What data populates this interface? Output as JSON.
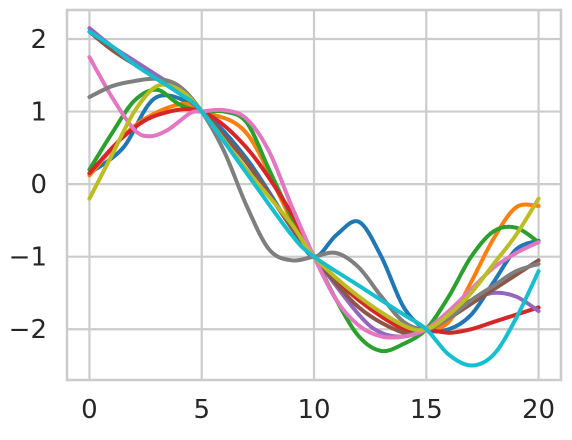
{
  "chart_data": {
    "type": "line",
    "title": "",
    "xlabel": "",
    "ylabel": "",
    "xlim": [
      -1,
      21
    ],
    "ylim": [
      -2.7,
      2.4
    ],
    "xticks": [
      0,
      5,
      10,
      15,
      20
    ],
    "yticks": [
      2,
      1,
      0,
      -1,
      -2
    ],
    "xtick_labels": [
      "0",
      "5",
      "10",
      "15",
      "20"
    ],
    "ytick_labels": [
      "2",
      "1",
      "0",
      "−1",
      "−2"
    ],
    "grid": true,
    "series": [
      {
        "color": "#1f77b4",
        "points": [
          [
            0,
            0.15
          ],
          [
            1.5,
            0.5
          ],
          [
            3,
            1.2
          ],
          [
            5,
            1.0
          ],
          [
            7,
            0.35
          ],
          [
            9,
            -0.6
          ],
          [
            10,
            -1.0
          ],
          [
            11,
            -0.7
          ],
          [
            12,
            -0.52
          ],
          [
            13,
            -1.0
          ],
          [
            14,
            -1.7
          ],
          [
            15,
            -2.0
          ],
          [
            16,
            -2.0
          ],
          [
            17,
            -1.8
          ],
          [
            18,
            -1.35
          ],
          [
            19,
            -0.9
          ],
          [
            20,
            -0.78
          ]
        ]
      },
      {
        "color": "#ff7f0e",
        "points": [
          [
            0,
            0.12
          ],
          [
            2,
            0.8
          ],
          [
            4,
            1.1
          ],
          [
            5,
            1.0
          ],
          [
            7,
            0.7
          ],
          [
            9,
            -0.5
          ],
          [
            10,
            -1.0
          ],
          [
            12,
            -1.6
          ],
          [
            14,
            -2.0
          ],
          [
            15,
            -2.0
          ],
          [
            16,
            -1.9
          ],
          [
            17,
            -1.35
          ],
          [
            18,
            -0.75
          ],
          [
            19,
            -0.32
          ],
          [
            20,
            -0.3
          ]
        ]
      },
      {
        "color": "#2ca02c",
        "points": [
          [
            0,
            0.2
          ],
          [
            1,
            0.7
          ],
          [
            2,
            1.15
          ],
          [
            3,
            1.3
          ],
          [
            4,
            1.1
          ],
          [
            5,
            1.0
          ],
          [
            6,
            1.0
          ],
          [
            7,
            0.85
          ],
          [
            8,
            0.2
          ],
          [
            9,
            -0.45
          ],
          [
            10,
            -1.0
          ],
          [
            11,
            -1.6
          ],
          [
            12,
            -2.1
          ],
          [
            13,
            -2.3
          ],
          [
            14,
            -2.2
          ],
          [
            15,
            -2.0
          ],
          [
            16,
            -1.55
          ],
          [
            17,
            -1.0
          ],
          [
            18,
            -0.65
          ],
          [
            19,
            -0.6
          ],
          [
            20,
            -0.8
          ]
        ]
      },
      {
        "color": "#d62728",
        "points": [
          [
            0,
            0.15
          ],
          [
            1.5,
            0.65
          ],
          [
            3,
            0.95
          ],
          [
            5,
            1.0
          ],
          [
            7,
            0.5
          ],
          [
            9,
            -0.4
          ],
          [
            10,
            -1.0
          ],
          [
            12,
            -1.6
          ],
          [
            14,
            -2.0
          ],
          [
            15,
            -2.0
          ],
          [
            16,
            -2.05
          ],
          [
            17,
            -2.0
          ],
          [
            18,
            -1.9
          ],
          [
            19,
            -1.8
          ],
          [
            20,
            -1.7
          ]
        ]
      },
      {
        "color": "#9467bd",
        "points": [
          [
            0,
            2.15
          ],
          [
            1,
            1.9
          ],
          [
            2,
            1.7
          ],
          [
            3,
            1.5
          ],
          [
            4,
            1.3
          ],
          [
            5,
            1.0
          ],
          [
            7,
            0.3
          ],
          [
            9,
            -0.6
          ],
          [
            10,
            -1.0
          ],
          [
            12,
            -1.8
          ],
          [
            13,
            -2.05
          ],
          [
            14,
            -2.1
          ],
          [
            15,
            -2.0
          ],
          [
            16,
            -1.8
          ],
          [
            17,
            -1.6
          ],
          [
            18,
            -1.5
          ],
          [
            19,
            -1.55
          ],
          [
            20,
            -1.75
          ]
        ]
      },
      {
        "color": "#8c564b",
        "points": [
          [
            0,
            2.1
          ],
          [
            1,
            1.85
          ],
          [
            2,
            1.65
          ],
          [
            3,
            1.45
          ],
          [
            4,
            1.25
          ],
          [
            5,
            1.0
          ],
          [
            7,
            0.3
          ],
          [
            9,
            -0.6
          ],
          [
            10,
            -1.0
          ],
          [
            12,
            -1.7
          ],
          [
            14,
            -2.05
          ],
          [
            15,
            -2.0
          ],
          [
            16,
            -1.85
          ],
          [
            17,
            -1.65
          ],
          [
            18,
            -1.45
          ],
          [
            19,
            -1.25
          ],
          [
            20,
            -1.05
          ]
        ]
      },
      {
        "color": "#e377c2",
        "points": [
          [
            0,
            1.75
          ],
          [
            1,
            1.2
          ],
          [
            2,
            0.75
          ],
          [
            2.7,
            0.66
          ],
          [
            3.5,
            0.75
          ],
          [
            4.5,
            0.98
          ],
          [
            5,
            1.0
          ],
          [
            6,
            1.02
          ],
          [
            7,
            0.9
          ],
          [
            8,
            0.45
          ],
          [
            9,
            -0.3
          ],
          [
            10,
            -1.0
          ],
          [
            11,
            -1.6
          ],
          [
            12,
            -1.95
          ],
          [
            13,
            -2.1
          ],
          [
            14,
            -2.1
          ],
          [
            15,
            -2.0
          ],
          [
            16,
            -1.75
          ],
          [
            17,
            -1.45
          ],
          [
            18,
            -1.15
          ],
          [
            19,
            -0.95
          ],
          [
            20,
            -0.8
          ]
        ]
      },
      {
        "color": "#7f7f7f",
        "points": [
          [
            0,
            1.2
          ],
          [
            1,
            1.35
          ],
          [
            2,
            1.42
          ],
          [
            3,
            1.45
          ],
          [
            4,
            1.35
          ],
          [
            5,
            1.0
          ],
          [
            6,
            0.45
          ],
          [
            7,
            -0.3
          ],
          [
            8,
            -0.9
          ],
          [
            9,
            -1.05
          ],
          [
            10,
            -1.0
          ],
          [
            11,
            -0.95
          ],
          [
            12,
            -1.15
          ],
          [
            13,
            -1.55
          ],
          [
            14,
            -1.9
          ],
          [
            15,
            -2.0
          ],
          [
            16,
            -1.85
          ],
          [
            17,
            -1.6
          ],
          [
            18,
            -1.4
          ],
          [
            19,
            -1.2
          ],
          [
            20,
            -1.1
          ]
        ]
      },
      {
        "color": "#bcbd22",
        "points": [
          [
            0,
            -0.2
          ],
          [
            1,
            0.4
          ],
          [
            2,
            1.0
          ],
          [
            3,
            1.35
          ],
          [
            4,
            1.3
          ],
          [
            5,
            1.0
          ],
          [
            7,
            0.2
          ],
          [
            9,
            -0.55
          ],
          [
            10,
            -1.0
          ],
          [
            12,
            -1.55
          ],
          [
            14,
            -1.95
          ],
          [
            15,
            -2.0
          ],
          [
            16,
            -1.8
          ],
          [
            17,
            -1.5
          ],
          [
            18,
            -1.1
          ],
          [
            19,
            -0.7
          ],
          [
            20,
            -0.2
          ]
        ]
      },
      {
        "color": "#17becf",
        "points": [
          [
            0,
            2.1
          ],
          [
            1,
            1.9
          ],
          [
            2,
            1.65
          ],
          [
            3,
            1.45
          ],
          [
            4,
            1.25
          ],
          [
            5,
            1.0
          ],
          [
            7,
            0.15
          ],
          [
            9,
            -0.7
          ],
          [
            10,
            -1.0
          ],
          [
            12,
            -1.4
          ],
          [
            14,
            -1.8
          ],
          [
            15,
            -2.0
          ],
          [
            16,
            -2.35
          ],
          [
            17,
            -2.5
          ],
          [
            18,
            -2.35
          ],
          [
            19,
            -1.85
          ],
          [
            20,
            -1.2
          ]
        ]
      }
    ]
  }
}
